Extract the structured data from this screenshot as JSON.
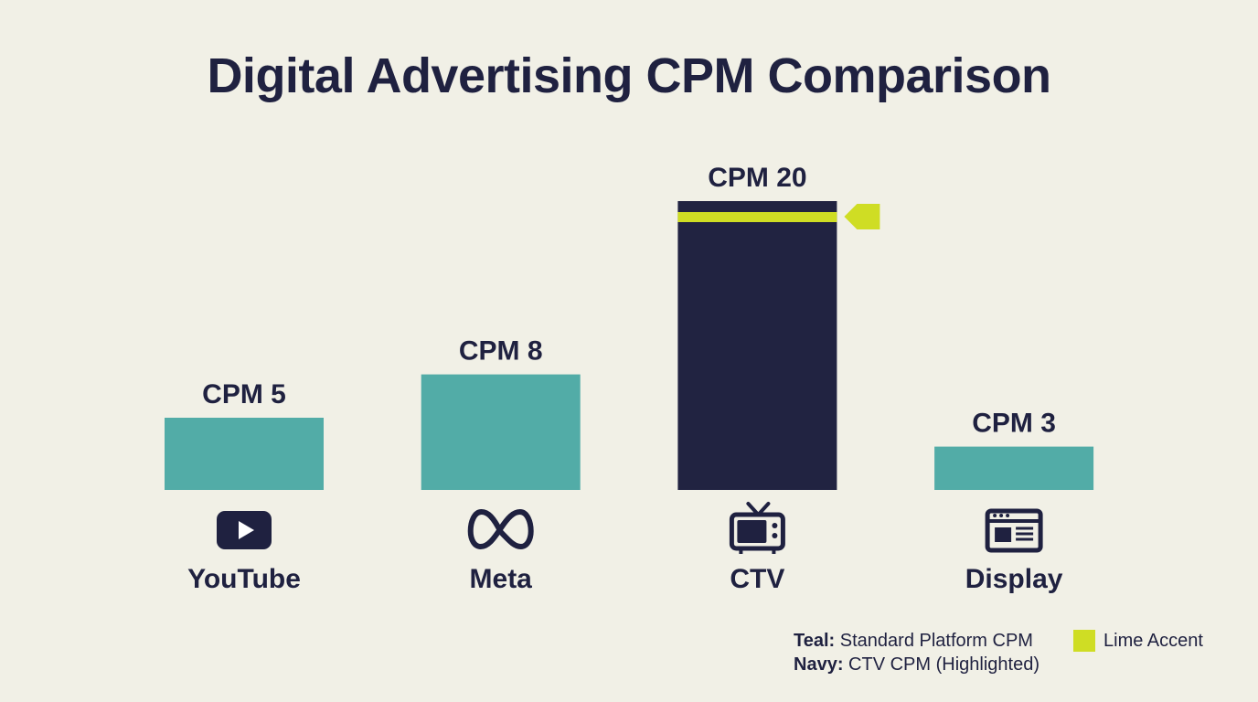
{
  "colors": {
    "teal": "#52aca7",
    "navy": "#212341",
    "lime": "#cfdd24",
    "ink": "#1f2140",
    "background": "#f1f0e6"
  },
  "chart_data": {
    "type": "bar",
    "title": "Digital Advertising CPM Comparison",
    "categories": [
      "YouTube",
      "Meta",
      "CTV",
      "Display"
    ],
    "values": [
      5,
      8,
      20,
      3
    ],
    "value_labels": [
      "CPM 5",
      "CPM 8",
      "CPM 20",
      "CPM 3"
    ],
    "icons": [
      "youtube-icon",
      "meta-icon",
      "tv-icon",
      "display-icon"
    ],
    "highlighted": [
      false,
      false,
      true,
      false
    ],
    "xlabel": "",
    "ylabel": "",
    "ylim": [
      0,
      20
    ],
    "grid": false,
    "legend_position": "bottom-right"
  },
  "legend": {
    "teal_key": "Teal:",
    "teal_text": "Standard Platform CPM",
    "navy_key": "Navy:",
    "navy_text": "CTV CPM (Highlighted)",
    "accent_text": "Lime Accent"
  }
}
